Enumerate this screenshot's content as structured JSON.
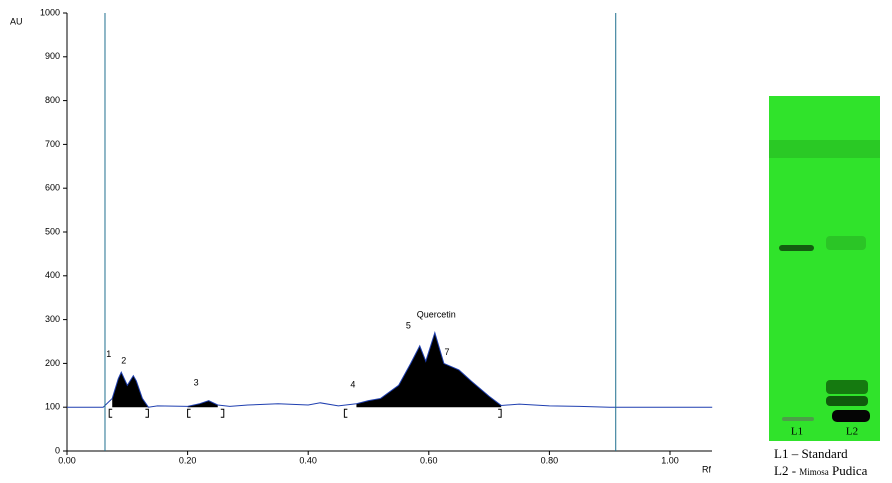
{
  "chart_data": {
    "type": "line",
    "ylabel": "AU",
    "xlabel": "Rf",
    "xlim": [
      0,
      1.07
    ],
    "ylim": [
      0,
      1000
    ],
    "xticks": [
      {
        "value": 0,
        "label": "0.00"
      },
      {
        "value": 0.2,
        "label": "0.20"
      },
      {
        "value": 0.4,
        "label": "0.40"
      },
      {
        "value": 0.6,
        "label": "0.60"
      },
      {
        "value": 0.8,
        "label": "0.80"
      },
      {
        "value": 1,
        "label": "1.00"
      }
    ],
    "yticks": [
      0,
      100,
      200,
      300,
      400,
      500,
      600,
      700,
      800,
      900,
      1000
    ],
    "x": [
      0,
      0.06,
      0.075,
      0.085,
      0.09,
      0.1,
      0.11,
      0.115,
      0.125,
      0.135,
      0.15,
      0.2,
      0.22,
      0.235,
      0.25,
      0.27,
      0.3,
      0.35,
      0.4,
      0.42,
      0.45,
      0.48,
      0.5,
      0.52,
      0.55,
      0.57,
      0.585,
      0.595,
      0.61,
      0.625,
      0.65,
      0.67,
      0.7,
      0.72,
      0.75,
      0.8,
      0.85,
      0.9,
      1.07
    ],
    "series": [
      {
        "color": "#1f3fb0",
        "values": [
          100,
          100,
          120,
          165,
          180,
          150,
          172,
          160,
          120,
          100,
          103,
          102,
          108,
          115,
          105,
          102,
          105,
          108,
          105,
          110,
          103,
          108,
          115,
          120,
          150,
          200,
          240,
          205,
          270,
          200,
          185,
          160,
          125,
          104,
          107,
          103,
          102,
          100,
          100
        ]
      }
    ],
    "fill_color": "#000000",
    "filled_ranges": [
      [
        0.07,
        0.135
      ],
      [
        0.2,
        0.26
      ],
      [
        0.46,
        0.72
      ]
    ],
    "vlines": [
      0.063,
      0.91
    ],
    "vline_color": "#1f6f8f",
    "peaks": [
      {
        "label": "1",
        "x": 0.065,
        "y": 220
      },
      {
        "label": "2",
        "x": 0.09,
        "y": 205
      },
      {
        "label": "3",
        "x": 0.21,
        "y": 155
      },
      {
        "label": "4",
        "x": 0.47,
        "y": 150
      },
      {
        "label": "5",
        "x": 0.562,
        "y": 285
      },
      {
        "label": "Quercetin",
        "x": 0.58,
        "y": 310
      },
      {
        "label": "7",
        "x": 0.626,
        "y": 225
      }
    ]
  },
  "plate": {
    "lanes": [
      "L1",
      "L2"
    ],
    "caption": [
      {
        "text": "L1 – Standard"
      },
      {
        "text": "L2 - ",
        "small": "Mimosa",
        "rest": " Pudica"
      }
    ]
  }
}
